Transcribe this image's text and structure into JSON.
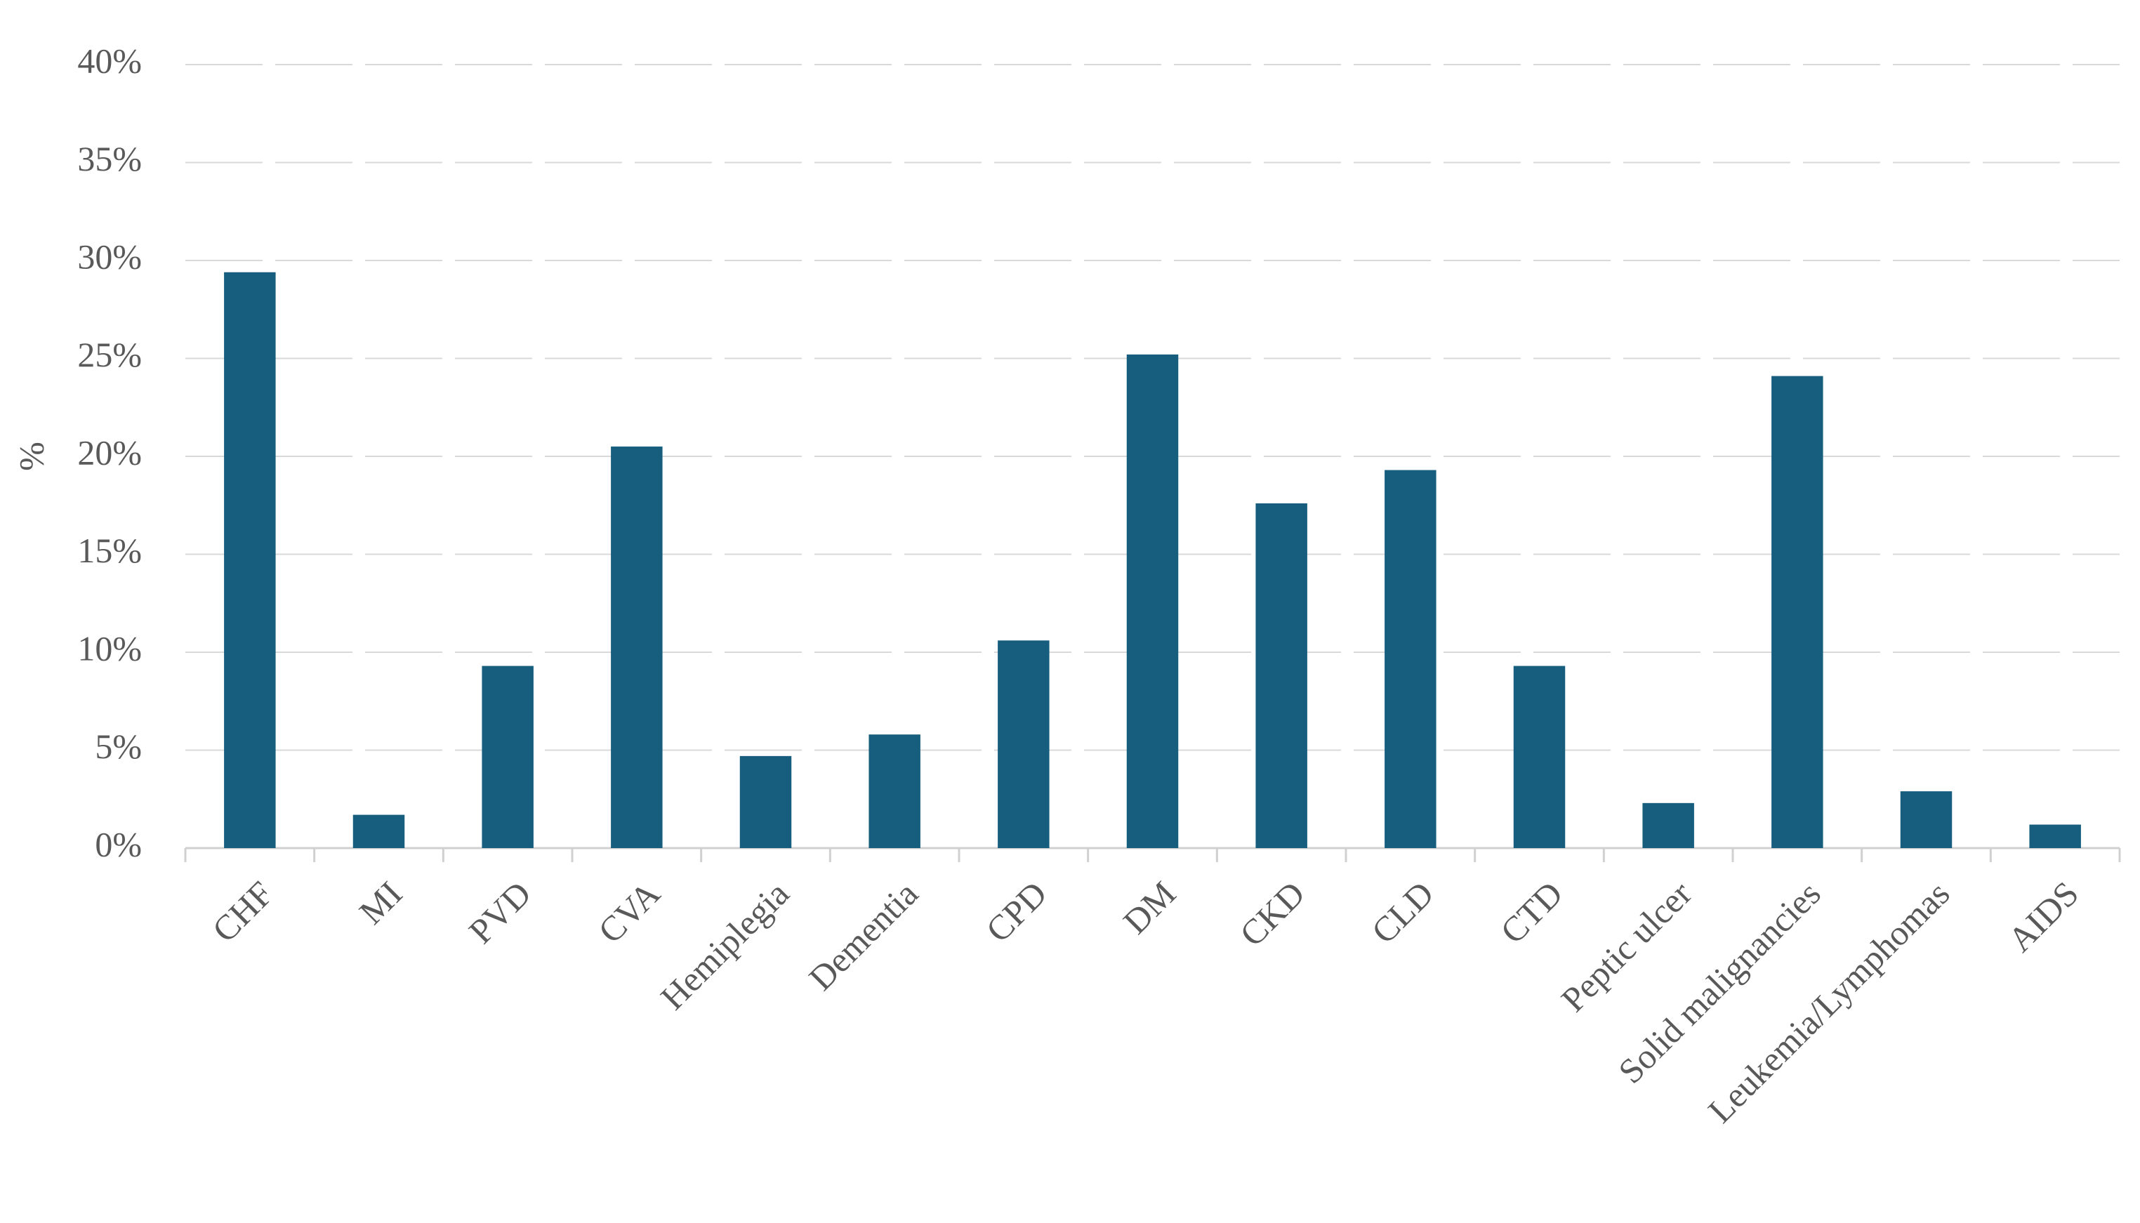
{
  "chart_data": {
    "type": "bar",
    "y_label": "%",
    "categories": [
      "CHF",
      "MI",
      "PVD",
      "CVA",
      "Hemiplegia",
      "Dementia",
      "CPD",
      "DM",
      "CKD",
      "CLD",
      "CTD",
      "Peptic ulcer",
      "Solid malignancies",
      "Leukemia/Lymphomas",
      "AIDS"
    ],
    "values": [
      29.4,
      1.7,
      9.3,
      20.5,
      4.7,
      5.8,
      10.6,
      25.2,
      17.6,
      19.3,
      9.3,
      2.3,
      24.1,
      2.9,
      1.2
    ],
    "color": "#175e7e",
    "ylim": [
      0,
      40
    ],
    "yticks": [
      {
        "value": 0,
        "label": "0%"
      },
      {
        "value": 5,
        "label": "5%"
      },
      {
        "value": 10,
        "label": "10%"
      },
      {
        "value": 15,
        "label": "15%"
      },
      {
        "value": 20,
        "label": "20%"
      },
      {
        "value": 25,
        "label": "25%"
      },
      {
        "value": 30,
        "label": "30%"
      },
      {
        "value": 35,
        "label": "35%"
      },
      {
        "value": 40,
        "label": "40%"
      }
    ],
    "grid": true
  }
}
